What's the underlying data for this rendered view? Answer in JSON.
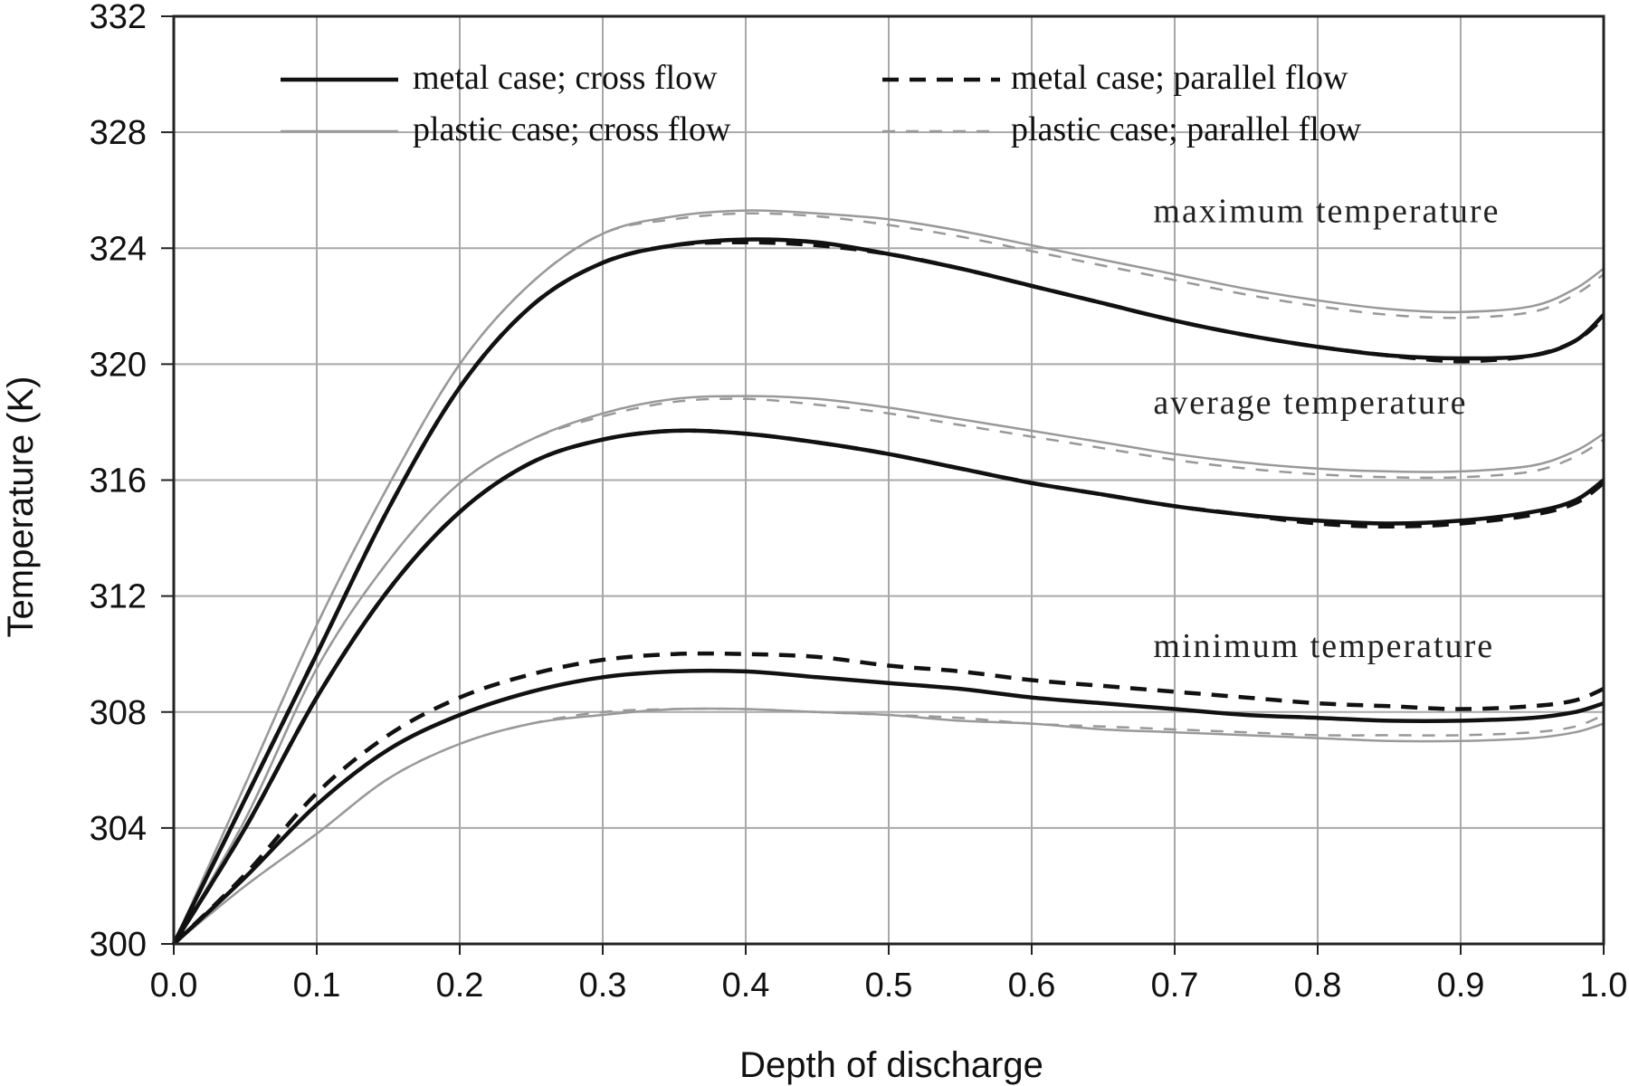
{
  "chart_data": {
    "type": "line",
    "xlabel": "Depth of discharge",
    "ylabel": "Temperature (K)",
    "xlim": [
      0.0,
      1.0
    ],
    "ylim": [
      300,
      332
    ],
    "x_ticks": [
      "0.0",
      "0.1",
      "0.2",
      "0.3",
      "0.4",
      "0.5",
      "0.6",
      "0.7",
      "0.8",
      "0.9",
      "1.0"
    ],
    "y_ticks": [
      "300",
      "304",
      "308",
      "312",
      "316",
      "320",
      "324",
      "328",
      "332"
    ],
    "grid": true,
    "legend_position": "top",
    "legend": [
      {
        "label": "metal case; cross flow",
        "color": "#111111",
        "dash": "solid",
        "thick": true
      },
      {
        "label": "metal case; parallel flow",
        "color": "#111111",
        "dash": "dashed",
        "thick": true
      },
      {
        "label": "plastic case; cross flow",
        "color": "#999999",
        "dash": "solid",
        "thick": false
      },
      {
        "label": "plastic case; parallel flow",
        "color": "#999999",
        "dash": "dashed",
        "thick": false
      }
    ],
    "annotations": [
      {
        "text": "maximum temperature",
        "x": 0.68,
        "y": 324.9
      },
      {
        "text": "average temperature",
        "x": 0.68,
        "y": 318.3
      },
      {
        "text": "minimum temperature",
        "x": 0.68,
        "y": 309.9
      }
    ],
    "x": [
      0.0,
      0.05,
      0.1,
      0.15,
      0.2,
      0.25,
      0.3,
      0.35,
      0.4,
      0.45,
      0.5,
      0.55,
      0.6,
      0.65,
      0.7,
      0.75,
      0.8,
      0.85,
      0.9,
      0.95,
      0.98,
      1.0
    ],
    "series": [
      {
        "group": "maximum",
        "legend_index": 0,
        "values": [
          300,
          305.0,
          310.0,
          315.0,
          319.2,
          322.0,
          323.5,
          324.1,
          324.3,
          324.2,
          323.8,
          323.3,
          322.7,
          322.1,
          321.5,
          321.0,
          320.6,
          320.3,
          320.2,
          320.3,
          320.8,
          321.7
        ]
      },
      {
        "group": "maximum",
        "legend_index": 1,
        "values": [
          300,
          305.0,
          310.0,
          315.0,
          319.2,
          322.0,
          323.5,
          324.1,
          324.2,
          324.1,
          323.8,
          323.3,
          322.7,
          322.1,
          321.5,
          321.0,
          320.6,
          320.3,
          320.1,
          320.3,
          320.8,
          321.6
        ]
      },
      {
        "group": "maximum",
        "legend_index": 2,
        "values": [
          300,
          305.5,
          311.0,
          315.8,
          320.0,
          322.8,
          324.5,
          325.1,
          325.3,
          325.2,
          325.0,
          324.6,
          324.1,
          323.6,
          323.1,
          322.6,
          322.2,
          321.9,
          321.8,
          322.0,
          322.6,
          323.3
        ]
      },
      {
        "group": "maximum",
        "legend_index": 3,
        "values": [
          300,
          305.5,
          311.0,
          315.8,
          320.0,
          322.8,
          324.5,
          325.0,
          325.2,
          325.1,
          324.8,
          324.4,
          323.9,
          323.4,
          322.9,
          322.4,
          322.0,
          321.7,
          321.6,
          321.8,
          322.4,
          323.1
        ]
      },
      {
        "group": "average",
        "legend_index": 0,
        "values": [
          300,
          304.0,
          308.5,
          312.2,
          314.9,
          316.6,
          317.4,
          317.7,
          317.6,
          317.3,
          316.9,
          316.4,
          315.9,
          315.5,
          315.1,
          314.8,
          314.6,
          314.5,
          314.6,
          314.9,
          315.3,
          316.0
        ]
      },
      {
        "group": "average",
        "legend_index": 1,
        "values": [
          300,
          304.0,
          308.5,
          312.2,
          314.9,
          316.6,
          317.4,
          317.7,
          317.6,
          317.3,
          316.9,
          316.4,
          315.9,
          315.5,
          315.1,
          314.8,
          314.5,
          314.4,
          314.5,
          314.8,
          315.2,
          315.9
        ]
      },
      {
        "group": "average",
        "legend_index": 2,
        "values": [
          300,
          304.3,
          309.5,
          313.2,
          315.9,
          317.4,
          318.3,
          318.8,
          318.9,
          318.8,
          318.5,
          318.1,
          317.7,
          317.3,
          316.9,
          316.6,
          316.4,
          316.3,
          316.3,
          316.5,
          317.0,
          317.6
        ]
      },
      {
        "group": "average",
        "legend_index": 3,
        "values": [
          300,
          304.3,
          309.5,
          313.2,
          315.9,
          317.4,
          318.2,
          318.7,
          318.8,
          318.6,
          318.3,
          317.9,
          317.5,
          317.1,
          316.7,
          316.4,
          316.2,
          316.1,
          316.1,
          316.3,
          316.8,
          317.4
        ]
      },
      {
        "group": "minimum",
        "legend_index": 0,
        "values": [
          300,
          302.3,
          304.8,
          306.7,
          307.9,
          308.7,
          309.2,
          309.4,
          309.4,
          309.2,
          309.0,
          308.8,
          308.5,
          308.3,
          308.1,
          307.9,
          307.8,
          307.7,
          307.7,
          307.8,
          308.0,
          308.3
        ]
      },
      {
        "group": "minimum",
        "legend_index": 1,
        "values": [
          300,
          302.4,
          305.2,
          307.2,
          308.5,
          309.3,
          309.8,
          310.0,
          310.0,
          309.9,
          309.6,
          309.4,
          309.1,
          308.9,
          308.7,
          308.5,
          308.3,
          308.2,
          308.1,
          308.2,
          308.4,
          308.8
        ]
      },
      {
        "group": "minimum",
        "legend_index": 2,
        "values": [
          300,
          302.0,
          303.8,
          305.7,
          306.9,
          307.6,
          307.9,
          308.1,
          308.1,
          308.0,
          307.9,
          307.7,
          307.6,
          307.4,
          307.3,
          307.2,
          307.1,
          307.0,
          307.0,
          307.1,
          307.3,
          307.6
        ]
      },
      {
        "group": "minimum",
        "legend_index": 3,
        "values": [
          300,
          302.0,
          303.8,
          305.7,
          306.9,
          307.6,
          308.0,
          308.1,
          308.1,
          308.0,
          307.9,
          307.8,
          307.6,
          307.5,
          307.4,
          307.3,
          307.2,
          307.2,
          307.2,
          307.3,
          307.5,
          307.9
        ]
      }
    ]
  }
}
